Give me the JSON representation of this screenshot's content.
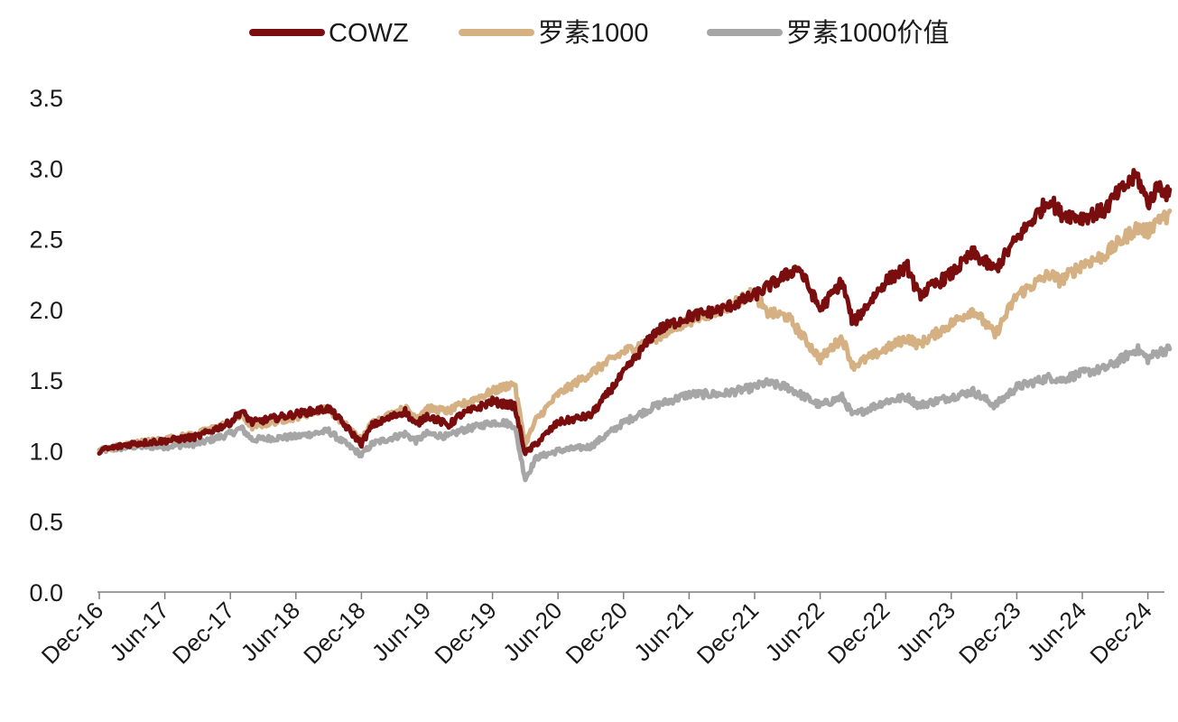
{
  "chart_data": {
    "type": "line",
    "title": "",
    "xlabel": "",
    "ylabel": "",
    "ylim": [
      0,
      3.5
    ],
    "y_ticks": [
      "0.0",
      "0.5",
      "1.0",
      "1.5",
      "2.0",
      "2.5",
      "3.0",
      "3.5"
    ],
    "x_ticks": [
      "Dec-16",
      "Jun-17",
      "Dec-17",
      "Jun-18",
      "Dec-18",
      "Jun-19",
      "Dec-19",
      "Jun-20",
      "Dec-20",
      "Jun-21",
      "Dec-21",
      "Jun-22",
      "Dec-22",
      "Jun-23",
      "Dec-23",
      "Jun-24",
      "Dec-24"
    ],
    "grid": false,
    "legend_position": "top-center",
    "series": [
      {
        "name": "COWZ",
        "color": "#7a0e0e",
        "points": [
          [
            "Dec-16",
            1.0
          ],
          [
            "Mar-17",
            1.05
          ],
          [
            "Jun-17",
            1.07
          ],
          [
            "Sep-17",
            1.1
          ],
          [
            "Dec-17",
            1.2
          ],
          [
            "Jan-18",
            1.28
          ],
          [
            "Feb-18",
            1.2
          ],
          [
            "Jun-18",
            1.26
          ],
          [
            "Sep-18",
            1.3
          ],
          [
            "Oct-18",
            1.22
          ],
          [
            "Dec-18",
            1.05
          ],
          [
            "Jan-19",
            1.18
          ],
          [
            "Apr-19",
            1.28
          ],
          [
            "May-19",
            1.18
          ],
          [
            "Jun-19",
            1.25
          ],
          [
            "Aug-19",
            1.18
          ],
          [
            "Sep-19",
            1.25
          ],
          [
            "Dec-19",
            1.35
          ],
          [
            "Jan-20",
            1.33
          ],
          [
            "Feb-20",
            1.32
          ],
          [
            "Mar-20",
            0.98
          ],
          [
            "Apr-20",
            1.05
          ],
          [
            "Jun-20",
            1.2
          ],
          [
            "Sep-20",
            1.25
          ],
          [
            "Dec-20",
            1.55
          ],
          [
            "Jan-21",
            1.65
          ],
          [
            "Mar-21",
            1.85
          ],
          [
            "Jun-21",
            1.95
          ],
          [
            "Sep-21",
            2.0
          ],
          [
            "Dec-21",
            2.1
          ],
          [
            "Mar-22",
            2.25
          ],
          [
            "Apr-22",
            2.3
          ],
          [
            "Jun-22",
            2.0
          ],
          [
            "Aug-22",
            2.2
          ],
          [
            "Sep-22",
            1.9
          ],
          [
            "Dec-22",
            2.2
          ],
          [
            "Feb-23",
            2.3
          ],
          [
            "Mar-23",
            2.1
          ],
          [
            "Jun-23",
            2.25
          ],
          [
            "Aug-23",
            2.4
          ],
          [
            "Oct-23",
            2.28
          ],
          [
            "Dec-23",
            2.5
          ],
          [
            "Mar-24",
            2.78
          ],
          [
            "Apr-24",
            2.68
          ],
          [
            "Jun-24",
            2.65
          ],
          [
            "Aug-24",
            2.7
          ],
          [
            "Sep-24",
            2.8
          ],
          [
            "Nov-24",
            2.95
          ],
          [
            "Dec-24",
            2.75
          ],
          [
            "Jan-25",
            2.88
          ],
          [
            "Feb-25",
            2.8
          ]
        ]
      },
      {
        "name": "罗素1000",
        "color": "#d4b082",
        "points": [
          [
            "Dec-16",
            1.0
          ],
          [
            "Mar-17",
            1.05
          ],
          [
            "Jun-17",
            1.08
          ],
          [
            "Sep-17",
            1.12
          ],
          [
            "Dec-17",
            1.2
          ],
          [
            "Jan-18",
            1.25
          ],
          [
            "Feb-18",
            1.17
          ],
          [
            "Jun-18",
            1.24
          ],
          [
            "Sep-18",
            1.3
          ],
          [
            "Oct-18",
            1.22
          ],
          [
            "Dec-18",
            1.08
          ],
          [
            "Jan-19",
            1.2
          ],
          [
            "Apr-19",
            1.3
          ],
          [
            "May-19",
            1.24
          ],
          [
            "Jun-19",
            1.3
          ],
          [
            "Aug-19",
            1.28
          ],
          [
            "Sep-19",
            1.32
          ],
          [
            "Dec-19",
            1.42
          ],
          [
            "Jan-20",
            1.45
          ],
          [
            "Feb-20",
            1.48
          ],
          [
            "Mar-20",
            1.05
          ],
          [
            "Apr-20",
            1.22
          ],
          [
            "Jun-20",
            1.4
          ],
          [
            "Sep-20",
            1.55
          ],
          [
            "Dec-20",
            1.7
          ],
          [
            "Mar-21",
            1.8
          ],
          [
            "Jun-21",
            1.92
          ],
          [
            "Sep-21",
            2.0
          ],
          [
            "Dec-21",
            2.12
          ],
          [
            "Jan-22",
            1.98
          ],
          [
            "Mar-22",
            1.95
          ],
          [
            "Jun-22",
            1.65
          ],
          [
            "Aug-22",
            1.8
          ],
          [
            "Sep-22",
            1.6
          ],
          [
            "Dec-22",
            1.72
          ],
          [
            "Feb-23",
            1.8
          ],
          [
            "Mar-23",
            1.75
          ],
          [
            "Jun-23",
            1.9
          ],
          [
            "Aug-23",
            2.0
          ],
          [
            "Oct-23",
            1.82
          ],
          [
            "Dec-23",
            2.1
          ],
          [
            "Mar-24",
            2.25
          ],
          [
            "Apr-24",
            2.2
          ],
          [
            "Jun-24",
            2.32
          ],
          [
            "Aug-24",
            2.38
          ],
          [
            "Sep-24",
            2.45
          ],
          [
            "Nov-24",
            2.58
          ],
          [
            "Dec-24",
            2.55
          ],
          [
            "Jan-25",
            2.65
          ],
          [
            "Feb-25",
            2.65
          ]
        ]
      },
      {
        "name": "罗素1000价值",
        "color": "#a6a6a6",
        "points": [
          [
            "Dec-16",
            1.0
          ],
          [
            "Mar-17",
            1.03
          ],
          [
            "Jun-17",
            1.03
          ],
          [
            "Sep-17",
            1.05
          ],
          [
            "Dec-17",
            1.12
          ],
          [
            "Jan-18",
            1.16
          ],
          [
            "Feb-18",
            1.08
          ],
          [
            "Jun-18",
            1.1
          ],
          [
            "Sep-18",
            1.14
          ],
          [
            "Oct-18",
            1.08
          ],
          [
            "Dec-18",
            0.97
          ],
          [
            "Jan-19",
            1.05
          ],
          [
            "Apr-19",
            1.12
          ],
          [
            "May-19",
            1.07
          ],
          [
            "Jun-19",
            1.12
          ],
          [
            "Aug-19",
            1.1
          ],
          [
            "Sep-19",
            1.14
          ],
          [
            "Dec-19",
            1.2
          ],
          [
            "Jan-20",
            1.2
          ],
          [
            "Feb-20",
            1.18
          ],
          [
            "Mar-20",
            0.8
          ],
          [
            "Apr-20",
            0.95
          ],
          [
            "Jun-20",
            1.0
          ],
          [
            "Sep-20",
            1.03
          ],
          [
            "Dec-20",
            1.2
          ],
          [
            "Mar-21",
            1.32
          ],
          [
            "Jun-21",
            1.4
          ],
          [
            "Sep-21",
            1.4
          ],
          [
            "Dec-21",
            1.45
          ],
          [
            "Jan-22",
            1.48
          ],
          [
            "Mar-22",
            1.45
          ],
          [
            "Jun-22",
            1.32
          ],
          [
            "Aug-22",
            1.38
          ],
          [
            "Sep-22",
            1.25
          ],
          [
            "Dec-22",
            1.35
          ],
          [
            "Feb-23",
            1.38
          ],
          [
            "Mar-23",
            1.32
          ],
          [
            "Jun-23",
            1.38
          ],
          [
            "Aug-23",
            1.42
          ],
          [
            "Oct-23",
            1.32
          ],
          [
            "Dec-23",
            1.45
          ],
          [
            "Mar-24",
            1.52
          ],
          [
            "Apr-24",
            1.5
          ],
          [
            "Jun-24",
            1.55
          ],
          [
            "Aug-24",
            1.58
          ],
          [
            "Sep-24",
            1.62
          ],
          [
            "Nov-24",
            1.72
          ],
          [
            "Dec-24",
            1.65
          ],
          [
            "Jan-25",
            1.7
          ],
          [
            "Feb-25",
            1.72
          ]
        ]
      }
    ]
  }
}
